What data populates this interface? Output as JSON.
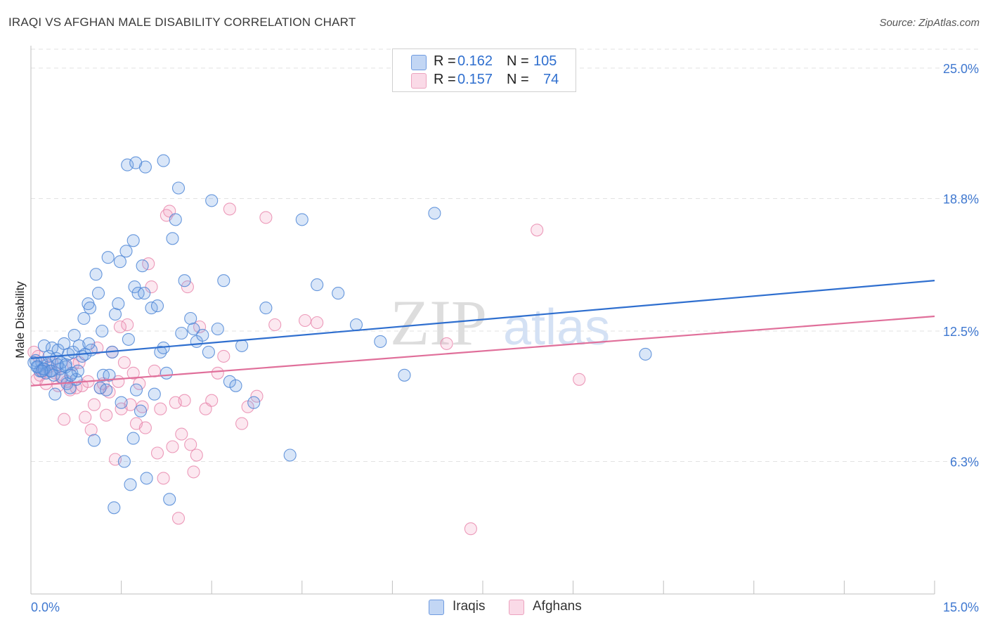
{
  "header": {
    "title": "IRAQI VS AFGHAN MALE DISABILITY CORRELATION CHART",
    "source": "Source: ZipAtlas.com"
  },
  "watermark": {
    "zip": "ZIP",
    "atlas": "atlas"
  },
  "legend": {
    "rows": [
      {
        "r_label": "R = ",
        "r_value": "0.162",
        "n_label": "N = ",
        "n_value": "105",
        "color": "#6fa0e6"
      },
      {
        "r_label": "R = ",
        "r_value": "0.157",
        "n_label": "N = ",
        "n_value": "74",
        "color": "#f08db0"
      }
    ]
  },
  "colors": {
    "iraqis_fill": "rgba(120,165,230,0.28)",
    "iraqis_stroke": "#4e86d6",
    "iraqis_line": "#2f6fcf",
    "afghans_fill": "rgba(240,150,185,0.22)",
    "afghans_stroke": "#e98aae",
    "afghans_line": "#e06f9a",
    "tick_label": "#3f78d0",
    "grid": "#e2e2e2"
  },
  "chart_data": {
    "type": "scatter",
    "title": "IRAQI VS AFGHAN MALE DISABILITY CORRELATION CHART",
    "xlabel": "",
    "ylabel": "Male Disability",
    "xlim": [
      0,
      15
    ],
    "ylim": [
      0,
      25.9
    ],
    "x_tick_labels": [
      "0.0%",
      "15.0%"
    ],
    "y_ticks": [
      6.3,
      12.5,
      18.8,
      25.0
    ],
    "y_tick_labels": [
      "6.3%",
      "12.5%",
      "18.8%",
      "25.0%"
    ],
    "grid": true,
    "legend_position": "top-center and bottom",
    "series": [
      {
        "name": "Iraqis",
        "r": 0.162,
        "n": 105,
        "trend": {
          "x": [
            0,
            15
          ],
          "y": [
            11.2,
            14.9
          ]
        },
        "points": [
          [
            0.08,
            11.1
          ],
          [
            0.12,
            10.8
          ],
          [
            0.15,
            10.6
          ],
          [
            0.18,
            11.0
          ],
          [
            0.2,
            10.7
          ],
          [
            0.22,
            11.8
          ],
          [
            0.25,
            10.5
          ],
          [
            0.28,
            10.9
          ],
          [
            0.3,
            11.3
          ],
          [
            0.32,
            10.6
          ],
          [
            0.35,
            11.7
          ],
          [
            0.38,
            10.4
          ],
          [
            0.4,
            9.5
          ],
          [
            0.42,
            11.2
          ],
          [
            0.45,
            11.6
          ],
          [
            0.48,
            10.7
          ],
          [
            0.5,
            11.0
          ],
          [
            0.52,
            10.3
          ],
          [
            0.55,
            11.9
          ],
          [
            0.58,
            10.8
          ],
          [
            0.6,
            10.0
          ],
          [
            0.62,
            11.4
          ],
          [
            0.65,
            9.8
          ],
          [
            0.68,
            10.5
          ],
          [
            0.7,
            11.5
          ],
          [
            0.72,
            12.3
          ],
          [
            0.75,
            10.2
          ],
          [
            0.78,
            10.6
          ],
          [
            0.8,
            11.8
          ],
          [
            0.85,
            11.3
          ],
          [
            0.88,
            13.1
          ],
          [
            0.9,
            11.4
          ],
          [
            0.95,
            13.8
          ],
          [
            0.98,
            13.6
          ],
          [
            1.0,
            11.6
          ],
          [
            1.05,
            7.3
          ],
          [
            1.08,
            15.2
          ],
          [
            1.12,
            14.3
          ],
          [
            1.15,
            9.8
          ],
          [
            1.18,
            12.5
          ],
          [
            1.2,
            10.4
          ],
          [
            1.25,
            9.7
          ],
          [
            1.28,
            16.0
          ],
          [
            1.3,
            10.4
          ],
          [
            1.35,
            11.5
          ],
          [
            1.38,
            4.1
          ],
          [
            1.4,
            13.3
          ],
          [
            1.45,
            13.8
          ],
          [
            1.48,
            15.8
          ],
          [
            1.5,
            9.1
          ],
          [
            1.55,
            6.3
          ],
          [
            1.58,
            16.3
          ],
          [
            1.62,
            12.1
          ],
          [
            1.65,
            5.2
          ],
          [
            1.7,
            7.4
          ],
          [
            1.72,
            14.6
          ],
          [
            1.75,
            9.7
          ],
          [
            1.78,
            14.3
          ],
          [
            1.82,
            8.7
          ],
          [
            1.85,
            15.6
          ],
          [
            1.88,
            14.3
          ],
          [
            1.9,
            20.3
          ],
          [
            1.92,
            5.5
          ],
          [
            2.0,
            13.6
          ],
          [
            2.05,
            9.5
          ],
          [
            2.1,
            13.7
          ],
          [
            2.15,
            11.5
          ],
          [
            2.2,
            11.7
          ],
          [
            2.25,
            10.5
          ],
          [
            2.3,
            4.5
          ],
          [
            2.35,
            16.9
          ],
          [
            2.4,
            17.8
          ],
          [
            2.45,
            19.3
          ],
          [
            2.5,
            12.4
          ],
          [
            2.55,
            14.9
          ],
          [
            2.65,
            13.1
          ],
          [
            2.7,
            12.6
          ],
          [
            2.75,
            12.0
          ],
          [
            2.85,
            12.3
          ],
          [
            2.95,
            11.5
          ],
          [
            3.1,
            12.6
          ],
          [
            3.2,
            14.9
          ],
          [
            3.3,
            10.1
          ],
          [
            3.4,
            9.9
          ],
          [
            3.5,
            11.8
          ],
          [
            3.7,
            9.1
          ],
          [
            3.9,
            13.6
          ],
          [
            4.3,
            6.6
          ],
          [
            4.5,
            17.8
          ],
          [
            4.75,
            14.7
          ],
          [
            5.1,
            14.3
          ],
          [
            5.4,
            12.8
          ],
          [
            5.8,
            12.0
          ],
          [
            6.2,
            10.4
          ],
          [
            6.7,
            18.1
          ],
          [
            10.2,
            11.4
          ],
          [
            1.7,
            16.8
          ],
          [
            0.05,
            11.0
          ],
          [
            0.1,
            10.8
          ],
          [
            0.22,
            10.7
          ],
          [
            0.34,
            10.6
          ],
          [
            0.44,
            10.9
          ],
          [
            0.58,
            10.9
          ],
          [
            0.66,
            10.4
          ],
          [
            0.96,
            11.9
          ],
          [
            1.6,
            20.4
          ],
          [
            3.0,
            18.7
          ],
          [
            2.2,
            20.6
          ],
          [
            1.74,
            20.5
          ],
          [
            0.18,
            10.6
          ]
        ]
      },
      {
        "name": "Afghans",
        "r": 0.157,
        "n": 74,
        "trend": {
          "x": [
            0,
            15
          ],
          "y": [
            9.9,
            13.2
          ]
        },
        "points": [
          [
            0.05,
            11.5
          ],
          [
            0.1,
            10.2
          ],
          [
            0.12,
            11.3
          ],
          [
            0.15,
            10.4
          ],
          [
            0.2,
            10.6
          ],
          [
            0.25,
            10.0
          ],
          [
            0.3,
            10.8
          ],
          [
            0.35,
            11.0
          ],
          [
            0.4,
            10.5
          ],
          [
            0.45,
            9.9
          ],
          [
            0.5,
            10.3
          ],
          [
            0.55,
            8.3
          ],
          [
            0.6,
            10.1
          ],
          [
            0.65,
            9.7
          ],
          [
            0.7,
            10.9
          ],
          [
            0.75,
            9.8
          ],
          [
            0.8,
            11.0
          ],
          [
            0.85,
            9.9
          ],
          [
            0.9,
            8.4
          ],
          [
            0.95,
            10.1
          ],
          [
            1.0,
            7.8
          ],
          [
            1.05,
            9.0
          ],
          [
            1.1,
            11.7
          ],
          [
            1.15,
            9.8
          ],
          [
            1.2,
            10.0
          ],
          [
            1.25,
            8.5
          ],
          [
            1.3,
            9.6
          ],
          [
            1.35,
            11.5
          ],
          [
            1.4,
            6.4
          ],
          [
            1.45,
            10.1
          ],
          [
            1.5,
            8.8
          ],
          [
            1.55,
            11.0
          ],
          [
            1.6,
            12.8
          ],
          [
            1.65,
            9.0
          ],
          [
            1.7,
            10.5
          ],
          [
            1.75,
            8.1
          ],
          [
            1.8,
            10.0
          ],
          [
            1.85,
            8.9
          ],
          [
            1.9,
            7.9
          ],
          [
            1.95,
            15.7
          ],
          [
            2.0,
            14.6
          ],
          [
            2.05,
            10.6
          ],
          [
            2.1,
            6.7
          ],
          [
            2.15,
            8.8
          ],
          [
            2.2,
            5.5
          ],
          [
            2.25,
            18.0
          ],
          [
            2.3,
            18.2
          ],
          [
            2.35,
            7.0
          ],
          [
            2.4,
            9.1
          ],
          [
            2.45,
            3.6
          ],
          [
            2.5,
            7.6
          ],
          [
            2.55,
            9.2
          ],
          [
            2.6,
            14.6
          ],
          [
            2.65,
            7.1
          ],
          [
            2.7,
            5.8
          ],
          [
            2.75,
            6.6
          ],
          [
            2.8,
            12.7
          ],
          [
            2.9,
            8.8
          ],
          [
            3.0,
            9.2
          ],
          [
            3.1,
            10.5
          ],
          [
            3.2,
            11.3
          ],
          [
            3.3,
            18.3
          ],
          [
            3.5,
            8.1
          ],
          [
            3.6,
            8.9
          ],
          [
            3.75,
            9.4
          ],
          [
            3.9,
            17.9
          ],
          [
            4.05,
            12.8
          ],
          [
            4.55,
            13.0
          ],
          [
            4.75,
            12.9
          ],
          [
            6.9,
            11.9
          ],
          [
            7.3,
            3.1
          ],
          [
            8.4,
            17.3
          ],
          [
            9.1,
            10.2
          ],
          [
            1.48,
            12.7
          ]
        ]
      }
    ]
  },
  "bottom_legend": [
    {
      "label": "Iraqis",
      "color": "#6fa0e6"
    },
    {
      "label": "Afghans",
      "color": "#f08db0"
    }
  ]
}
